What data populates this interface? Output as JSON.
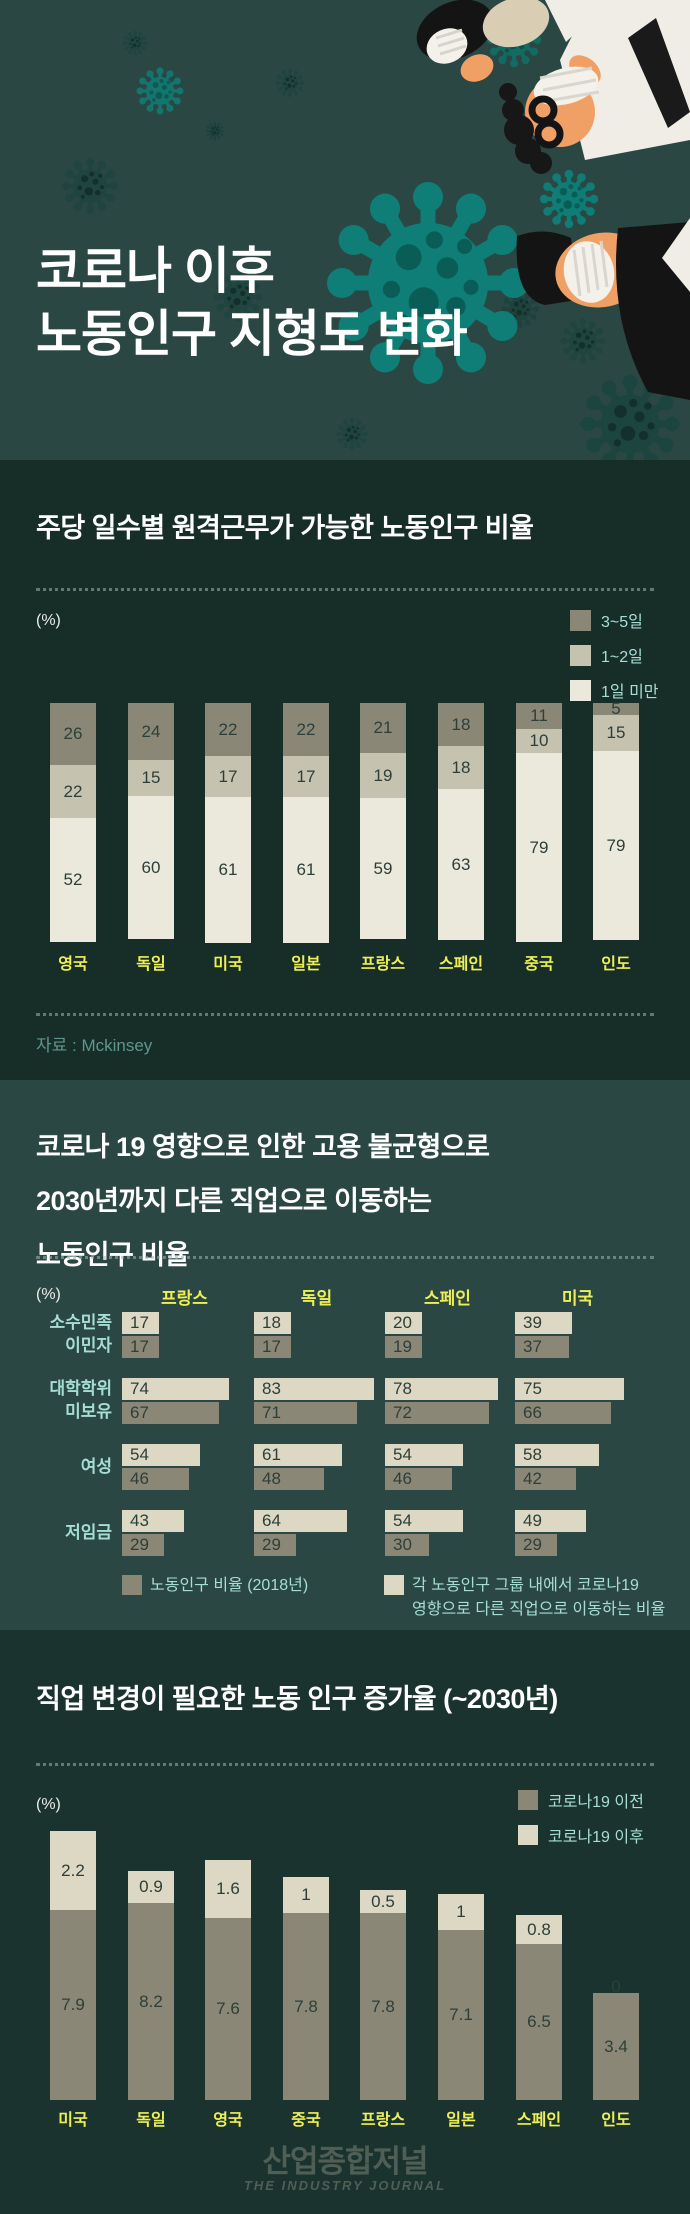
{
  "header": {
    "title_line1": "코로나 이후",
    "title_line2": "노동인구 지형도 변화"
  },
  "section1": {
    "title": "주당 일수별 원격근무가 가능한 노동인구 비율",
    "unit_label": "(%)",
    "source": "자료 : Mckinsey"
  },
  "section2": {
    "title_line1": "코로나 19 영향으로 인한 고용 불균형으로",
    "title_line2": "2030년까지 다른 직업으로 이동하는",
    "title_line3": "노동인구 비율",
    "unit_label": "(%)"
  },
  "section3": {
    "title": "직업 변경이 필요한 노동 인구 증가율 (~2030년)",
    "unit_label": "(%)"
  },
  "footer": {
    "logo_kr": "산업종합저널",
    "logo_en": "THE INDUSTRY JOURNAL"
  },
  "colors": {
    "bg_dark": "#162d28",
    "bg_light": "#2b4744",
    "accent_yellow": "#edef55",
    "accent_cyan": "#a7ded4",
    "bar_gray": "#8b8777",
    "bar_taupe": "#c6c2b0",
    "bar_cream_light": "#ebe9dc",
    "bar_cream": "#dcd8c3"
  },
  "chart_data": [
    {
      "id": "remote-work-days",
      "type": "bar",
      "stacked": true,
      "title": "주당 일수별 원격근무가 가능한 노동인구 비율",
      "unit": "%",
      "ylim": [
        0,
        100
      ],
      "legend_position": "top-right",
      "categories": [
        "영국",
        "독일",
        "미국",
        "일본",
        "프랑스",
        "스페인",
        "중국",
        "인도"
      ],
      "series": [
        {
          "name": "3~5일",
          "color": "#8b8777",
          "values": [
            26,
            24,
            22,
            22,
            21,
            18,
            11,
            5
          ]
        },
        {
          "name": "1~2일",
          "color": "#c6c2b0",
          "values": [
            22,
            15,
            17,
            17,
            19,
            18,
            10,
            15
          ]
        },
        {
          "name": "1일 미만",
          "color": "#ebe9dc",
          "values": [
            52,
            60,
            61,
            61,
            59,
            63,
            79,
            79
          ]
        }
      ],
      "source": "자료 : Mckinsey"
    },
    {
      "id": "job-transition-share",
      "type": "bar-horizontal-grouped",
      "title": "코로나 19 영향으로 인한 고용 불균형으로 2030년까지 다른 직업으로 이동하는 노동인구 비율",
      "unit": "%",
      "columns": [
        "프랑스",
        "독일",
        "스페인",
        "미국"
      ],
      "row_groups": [
        {
          "label_lines": [
            "소수민족",
            "이민자"
          ]
        },
        {
          "label_lines": [
            "대학학위",
            "미보유"
          ]
        },
        {
          "label_lines": [
            "여성"
          ]
        },
        {
          "label_lines": [
            "저임금"
          ]
        }
      ],
      "series": [
        {
          "name": "각 노동인구 그룹 내에서 코로나19 영향으로 다른 직업으로 이동하는 비율",
          "legend_lines": [
            "각 노동인구 그룹 내에서 코로나19",
            "영향으로 다른 직업으로 이동하는 비율"
          ],
          "color": "#dcd8c3",
          "values": [
            [
              17,
              18,
              20,
              39
            ],
            [
              74,
              83,
              78,
              75
            ],
            [
              54,
              61,
              54,
              58
            ],
            [
              43,
              64,
              54,
              49
            ]
          ]
        },
        {
          "name": "노동인구 비율 (2018년)",
          "legend_lines": [
            "노동인구 비율 (2018년)"
          ],
          "color": "#8b8777",
          "values": [
            [
              17,
              17,
              19,
              37
            ],
            [
              67,
              71,
              72,
              66
            ],
            [
              46,
              48,
              46,
              42
            ],
            [
              29,
              29,
              30,
              29
            ]
          ]
        }
      ],
      "legend_position": "bottom"
    },
    {
      "id": "workforce-change-growth",
      "type": "bar",
      "stacked": true,
      "title": "직업 변경이 필요한 노동 인구 증가율 (~2030년)",
      "unit": "%",
      "legend_position": "top-right",
      "categories": [
        "미국",
        "독일",
        "영국",
        "중국",
        "프랑스",
        "일본",
        "스페인",
        "인도"
      ],
      "series": [
        {
          "name": "코로나19 이전",
          "color": "#8b8777",
          "values": [
            7.9,
            8.2,
            7.6,
            7.8,
            7.8,
            7.1,
            6.5,
            3.4
          ]
        },
        {
          "name": "코로나19 이후",
          "color": "#dcd8c3",
          "values": [
            2.2,
            0.9,
            1.6,
            1,
            0.5,
            1,
            0.8,
            0
          ]
        }
      ]
    }
  ]
}
